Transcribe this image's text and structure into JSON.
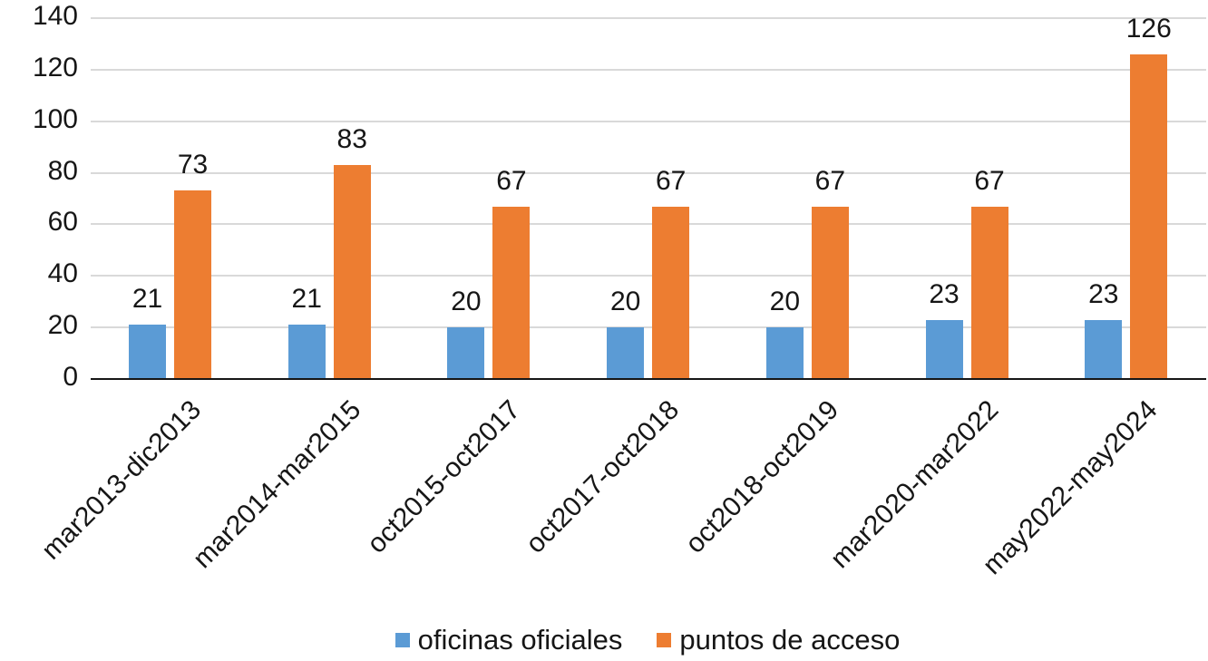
{
  "chart_data": {
    "type": "bar",
    "title": "",
    "xlabel": "",
    "ylabel": "",
    "categories": [
      "mar2013-dic2013",
      "mar2014-mar2015",
      "oct2015-oct2017",
      "oct2017-oct2018",
      "oct2018-oct2019",
      "mar2020-mar2022",
      "may2022-may2024"
    ],
    "series": [
      {
        "name": "oficinas oficiales",
        "color": "#5B9BD5",
        "values": [
          21,
          21,
          20,
          20,
          20,
          23,
          23
        ]
      },
      {
        "name": "puntos de acceso",
        "color": "#ED7D31",
        "values": [
          73,
          83,
          67,
          67,
          67,
          67,
          126
        ]
      }
    ],
    "ylim": [
      0,
      140
    ],
    "yticks": [
      0,
      20,
      40,
      60,
      80,
      100,
      120,
      140
    ],
    "grid": true,
    "data_labels": true,
    "legend_position": "bottom"
  },
  "colors": {
    "background": "#FFFFFF",
    "gridline": "#D9D9D9",
    "axis_line": "#161616",
    "text": "#161616",
    "series_blue": "#5B9BD5",
    "series_orange": "#ED7D31"
  }
}
